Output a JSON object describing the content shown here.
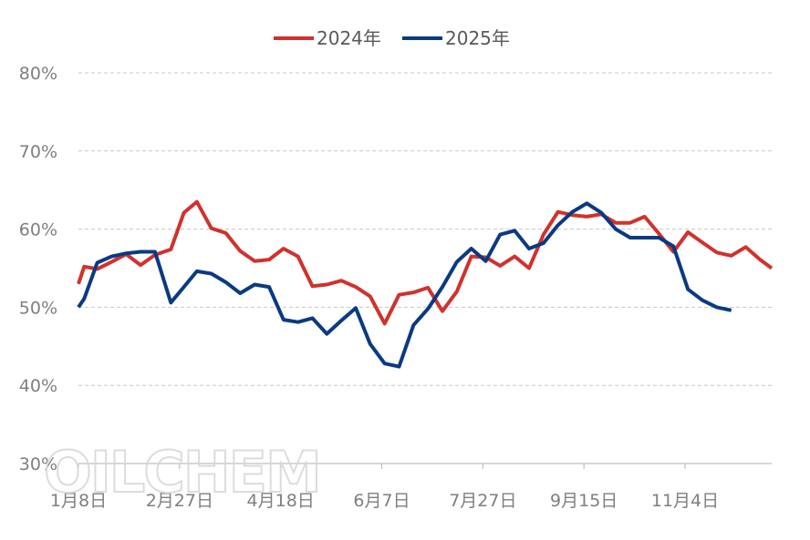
{
  "watermark": "OILCHEM",
  "chart_data": {
    "type": "line",
    "title": "",
    "xlabel": "",
    "ylabel": "",
    "ylim": [
      30,
      80
    ],
    "y_ticks": [
      "30%",
      "40%",
      "50%",
      "60%",
      "70%",
      "80%"
    ],
    "y_tick_values": [
      30,
      40,
      50,
      60,
      70,
      80
    ],
    "x_ticks": [
      "1月8日",
      "2月27日",
      "4月18日",
      "6月7日",
      "7月27日",
      "9月15日",
      "11月4日"
    ],
    "x_tick_positions": [
      0,
      7,
      14,
      21,
      28,
      35,
      42
    ],
    "x_range": [
      0,
      48
    ],
    "grid": "horizontal dashed",
    "legend_position": "top-center",
    "series": [
      {
        "name": "2024年",
        "color": "#d0322d",
        "x": [
          0,
          0.4,
          1.3,
          2.3,
          3.3,
          4.3,
          5.3,
          6.4,
          7.3,
          8.2,
          9.2,
          10.2,
          11.2,
          12.2,
          13.2,
          14.2,
          15.2,
          16.2,
          17.2,
          18.2,
          19.2,
          20.2,
          21.2,
          22.2,
          23.2,
          24.2,
          25.2,
          26.2,
          27.2,
          28.2,
          29.2,
          30.2,
          31.2,
          32.2,
          33.2,
          34.2,
          35.2,
          36.2,
          37.2,
          38.2,
          39.2,
          40.2,
          41.2,
          42.2,
          43.2,
          44.2,
          45.2,
          46.2,
          47.2,
          48
        ],
        "values": [
          53.0,
          55.2,
          54.9,
          55.8,
          56.8,
          55.4,
          56.7,
          57.4,
          62.1,
          63.5,
          60.1,
          59.5,
          57.2,
          55.9,
          56.1,
          57.5,
          56.5,
          52.7,
          52.9,
          53.4,
          52.6,
          51.4,
          47.9,
          51.6,
          51.9,
          52.5,
          49.5,
          52.0,
          56.5,
          56.4,
          55.3,
          56.5,
          55.0,
          59.3,
          62.2,
          61.8,
          61.6,
          61.9,
          60.8,
          60.8,
          61.6,
          59.4,
          57.1,
          59.6,
          58.3,
          57.0,
          56.6,
          57.7,
          56.1,
          55.0
        ]
      },
      {
        "name": "2025年",
        "color": "#0a3a82",
        "x": [
          0,
          0.4,
          1.3,
          2.3,
          3.3,
          4.3,
          5.3,
          6.4,
          7.3,
          8.2,
          9.2,
          10.2,
          11.2,
          12.2,
          13.2,
          14.2,
          15.2,
          16.2,
          17.2,
          18.2,
          19.2,
          20.2,
          21.2,
          22.2,
          23.2,
          24.2,
          25.2,
          26.2,
          27.2,
          28.2,
          29.2,
          30.2,
          31.2,
          32.2,
          33.2,
          34.2,
          35.2,
          36.2,
          37.2,
          38.2,
          39.2,
          40.2,
          41.2,
          42.2,
          43.2,
          44.2,
          45.2
        ],
        "values": [
          50.0,
          51.1,
          55.7,
          56.5,
          56.9,
          57.1,
          57.1,
          50.6,
          52.6,
          54.6,
          54.3,
          53.2,
          51.8,
          52.9,
          52.6,
          48.4,
          48.1,
          48.6,
          46.6,
          48.3,
          49.9,
          45.3,
          42.8,
          42.4,
          47.7,
          49.8,
          52.6,
          55.8,
          57.5,
          55.9,
          59.3,
          59.8,
          57.5,
          58.2,
          60.5,
          62.2,
          63.3,
          62.1,
          60.0,
          58.9,
          58.9,
          58.9,
          57.8,
          52.3,
          50.9,
          50.0,
          49.6
        ]
      }
    ]
  }
}
